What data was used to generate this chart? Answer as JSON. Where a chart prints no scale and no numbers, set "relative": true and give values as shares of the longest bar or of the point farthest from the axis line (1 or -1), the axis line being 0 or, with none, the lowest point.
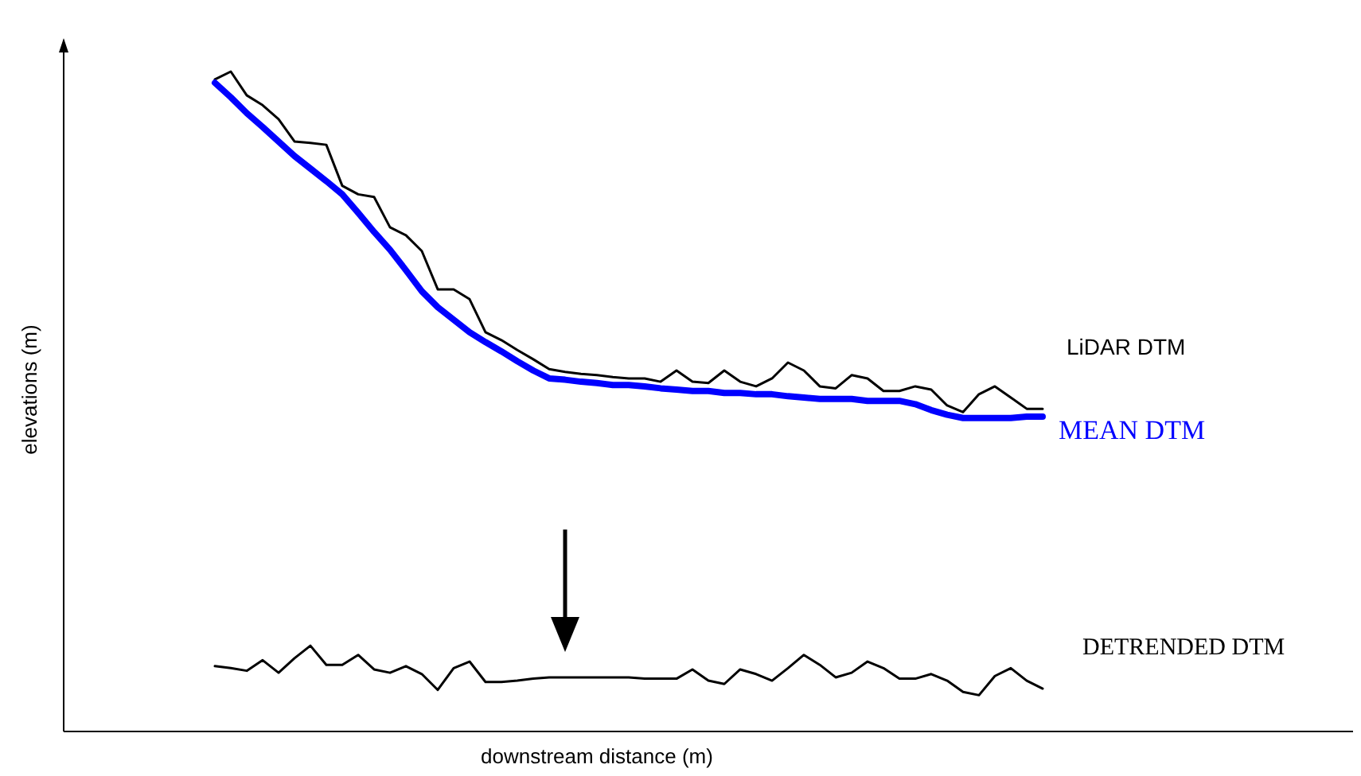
{
  "chart_data": {
    "type": "line",
    "relative": true,
    "xlabel": "downstream distance (m)",
    "ylabel": "elevations (m)",
    "categories": [
      null,
      null,
      null,
      null,
      null,
      null,
      null,
      null,
      null,
      null,
      null,
      null,
      null,
      null,
      null,
      null,
      null,
      null,
      null,
      null,
      null,
      null,
      null,
      null,
      null,
      null,
      null,
      null,
      null,
      null,
      null,
      null,
      null,
      null,
      null,
      null,
      null,
      null,
      null,
      null,
      null,
      null,
      null,
      null,
      null,
      null,
      null,
      null,
      null,
      null,
      null,
      null,
      null,
      null,
      null,
      null,
      null,
      null,
      null,
      null,
      null,
      null,
      null,
      null,
      null,
      null,
      null,
      null,
      null,
      null,
      null,
      null,
      null,
      null,
      null,
      null,
      null,
      null,
      null,
      null,
      null
    ],
    "series": [
      {
        "name": "LiDAR DTM",
        "color": "#000000",
        "values": [
          null,
          null,
          null,
          null,
          null,
          null,
          null,
          null,
          null,
          0.988,
          1,
          0.964,
          0.949,
          0.928,
          0.894,
          0.892,
          0.889,
          0.827,
          0.814,
          0.81,
          0.764,
          0.752,
          0.728,
          0.67,
          0.67,
          0.655,
          0.605,
          0.593,
          0.578,
          0.564,
          0.549,
          0.545,
          0.542,
          0.54,
          0.537,
          0.535,
          0.535,
          0.53,
          0.547,
          0.53,
          0.528,
          0.547,
          0.53,
          0.523,
          0.535,
          0.559,
          0.547,
          0.523,
          0.52,
          0.54,
          0.535,
          0.516,
          0.516,
          0.523,
          0.518,
          0.494,
          0.484,
          0.511,
          0.523,
          0.506,
          0.489,
          0.489,
          null,
          null,
          null,
          null,
          null,
          null,
          null,
          null,
          null,
          null,
          null,
          null,
          null,
          null,
          null,
          null,
          null,
          null,
          null
        ]
      },
      {
        "name": "MEAN DTM",
        "color": "#0000ff",
        "values": [
          null,
          null,
          null,
          null,
          null,
          null,
          null,
          null,
          null,
          0.983,
          0.961,
          0.937,
          0.916,
          0.894,
          0.872,
          0.853,
          0.834,
          0.814,
          0.786,
          0.757,
          0.73,
          0.699,
          0.667,
          0.643,
          0.624,
          0.605,
          0.59,
          0.576,
          0.561,
          0.547,
          0.535,
          0.533,
          0.53,
          0.528,
          0.525,
          0.525,
          0.523,
          0.52,
          0.518,
          0.516,
          0.516,
          0.513,
          0.513,
          0.511,
          0.511,
          0.508,
          0.506,
          0.504,
          0.504,
          0.504,
          0.501,
          0.501,
          0.501,
          0.496,
          0.487,
          0.48,
          0.475,
          0.475,
          0.475,
          0.475,
          0.477,
          0.477,
          null,
          null,
          null,
          null,
          null,
          null,
          null,
          null,
          null,
          null,
          null,
          null,
          null,
          null,
          null,
          null,
          null,
          null,
          null
        ]
      },
      {
        "name": "DETRENDED DTM",
        "color": "#000000",
        "values": [
          null,
          null,
          null,
          null,
          null,
          null,
          null,
          null,
          null,
          0.099,
          0.096,
          0.092,
          0.108,
          0.089,
          0.111,
          0.13,
          0.101,
          0.101,
          0.116,
          0.094,
          0.089,
          0.099,
          0.087,
          0.063,
          0.096,
          0.106,
          0.075,
          0.075,
          0.077,
          0.08,
          0.082,
          0.082,
          0.082,
          0.082,
          0.082,
          0.082,
          0.08,
          0.08,
          0.08,
          0.094,
          0.077,
          0.072,
          0.094,
          0.087,
          0.077,
          0.096,
          0.116,
          0.101,
          0.082,
          0.089,
          0.106,
          0.096,
          0.08,
          0.08,
          0.087,
          0.077,
          0.06,
          0.055,
          0.084,
          0.096,
          0.077,
          0.065,
          null,
          null,
          null,
          null,
          null,
          null,
          null,
          null,
          null,
          null,
          null,
          null,
          null,
          null,
          null,
          null,
          null,
          null,
          null
        ]
      }
    ]
  }
}
